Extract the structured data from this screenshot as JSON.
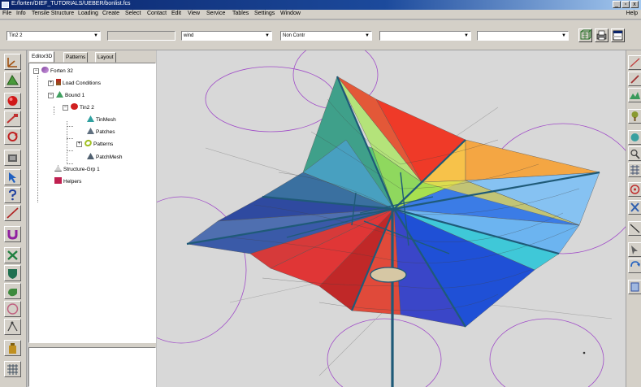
{
  "window": {
    "title": "E:/forten/DIEF_TUTORIALS/UEBER/bonlist.fcs",
    "buttons": [
      "_",
      "▫",
      "x"
    ]
  },
  "menu": {
    "items": [
      "File",
      "Info",
      "Tensile Structure",
      "Loading",
      "Create",
      "Select",
      "Contact",
      "Edit",
      "View",
      "Service",
      "Tables",
      "Settings",
      "Window"
    ],
    "help": "Help"
  },
  "toolbar": {
    "combo1": "Tin2 2",
    "combo2": "",
    "combo3": "wind",
    "combo4": "Non Contr",
    "combo5": "",
    "combo6": "",
    "buttons": [
      "view-3d-icon",
      "print-icon",
      "window-icon"
    ]
  },
  "tabs": [
    "Editor3D",
    "Patterns",
    "Layout"
  ],
  "tree": {
    "root": "Forten 32",
    "load_conditions": "Load Conditions",
    "bound": "Bound 1",
    "tin": "Tin2 2",
    "tinmesh": "TinMesh",
    "patches": "Patches",
    "patterns": "Patterns",
    "patchmesh": "PatchMesh",
    "structure_grp": "Structure-Grp 1",
    "helpers": "Helpers"
  },
  "left_tools": [
    "axes-icon",
    "triangle-icon",
    "sphere-icon",
    "select-icon",
    "rotate-icon",
    "move-icon",
    "pointer-icon",
    "help-icon",
    "line-icon",
    "magnet-icon",
    "cross-icon",
    "shield-icon",
    "hand-icon",
    "circle-icon",
    "node-icon",
    "bottle-icon",
    "grid-icon"
  ],
  "right_tools": [
    "view-icon",
    "pen-icon",
    "terrain-icon",
    "tree-icon",
    "globe-icon",
    "zoom-icon",
    "mesh-icon",
    "target-icon",
    "cross-red-icon",
    "line-icon",
    "pointer-icon",
    "rotate-icon",
    "select-icon"
  ],
  "colors": {
    "title_bar": "#0a246a",
    "viewport_bg": "#d8d8d8",
    "structure_frame": "#1f5a78",
    "guide_circles": "#a04cc8"
  }
}
